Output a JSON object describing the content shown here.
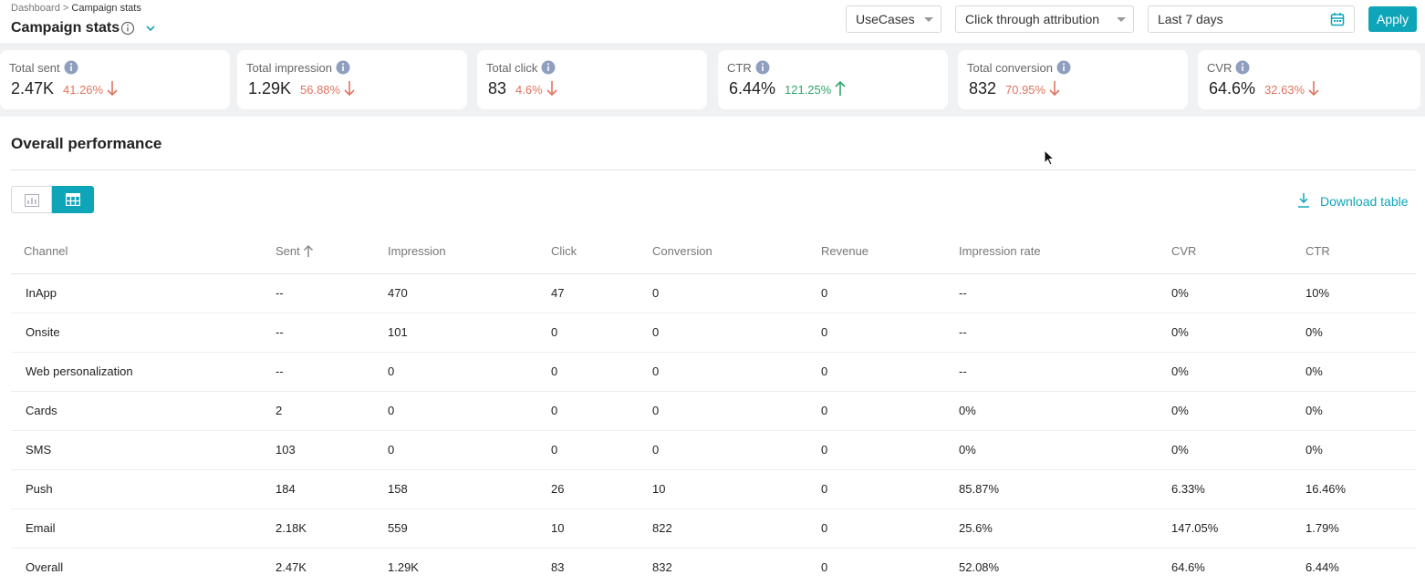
{
  "header": {
    "breadcrumb": [
      "Dashboard",
      "Campaign stats"
    ],
    "breadcrumb_separator": ">",
    "title": "Campaign stats",
    "filters": {
      "use_case": "UseCases",
      "attribution": "Click through attribution",
      "date_range": "Last 7 days",
      "apply": "Apply"
    }
  },
  "stats": [
    {
      "label": "Total sent",
      "value": "2.47K",
      "change": "41.26%",
      "direction": "down"
    },
    {
      "label": "Total impression",
      "value": "1.29K",
      "change": "56.88%",
      "direction": "down"
    },
    {
      "label": "Total click",
      "value": "83",
      "change": "4.6%",
      "direction": "down"
    },
    {
      "label": "CTR",
      "value": "6.44%",
      "change": "121.25%",
      "direction": "up"
    },
    {
      "label": "Total conversion",
      "value": "832",
      "change": "70.95%",
      "direction": "down"
    },
    {
      "label": "CVR",
      "value": "64.6%",
      "change": "32.63%",
      "direction": "down"
    }
  ],
  "section": {
    "title": "Overall performance",
    "download": "Download table"
  },
  "table": {
    "columns": [
      "Channel",
      "Sent",
      "Impression",
      "Click",
      "Conversion",
      "Revenue",
      "Impression rate",
      "CVR",
      "CTR"
    ],
    "sort": {
      "column": 1,
      "direction": "asc"
    },
    "rows": [
      [
        "InApp",
        "--",
        "470",
        "47",
        "0",
        "0",
        "--",
        "0%",
        "10%"
      ],
      [
        "Onsite",
        "--",
        "101",
        "0",
        "0",
        "0",
        "--",
        "0%",
        "0%"
      ],
      [
        "Web personalization",
        "--",
        "0",
        "0",
        "0",
        "0",
        "--",
        "0%",
        "0%"
      ],
      [
        "Cards",
        "2",
        "0",
        "0",
        "0",
        "0",
        "0%",
        "0%",
        "0%"
      ],
      [
        "SMS",
        "103",
        "0",
        "0",
        "0",
        "0",
        "0%",
        "0%",
        "0%"
      ],
      [
        "Push",
        "184",
        "158",
        "26",
        "10",
        "0",
        "85.87%",
        "6.33%",
        "16.46%"
      ],
      [
        "Email",
        "2.18K",
        "559",
        "10",
        "822",
        "0",
        "25.6%",
        "147.05%",
        "1.79%"
      ],
      [
        "Overall",
        "2.47K",
        "1.29K",
        "83",
        "832",
        "0",
        "52.08%",
        "64.6%",
        "6.44%"
      ]
    ]
  }
}
